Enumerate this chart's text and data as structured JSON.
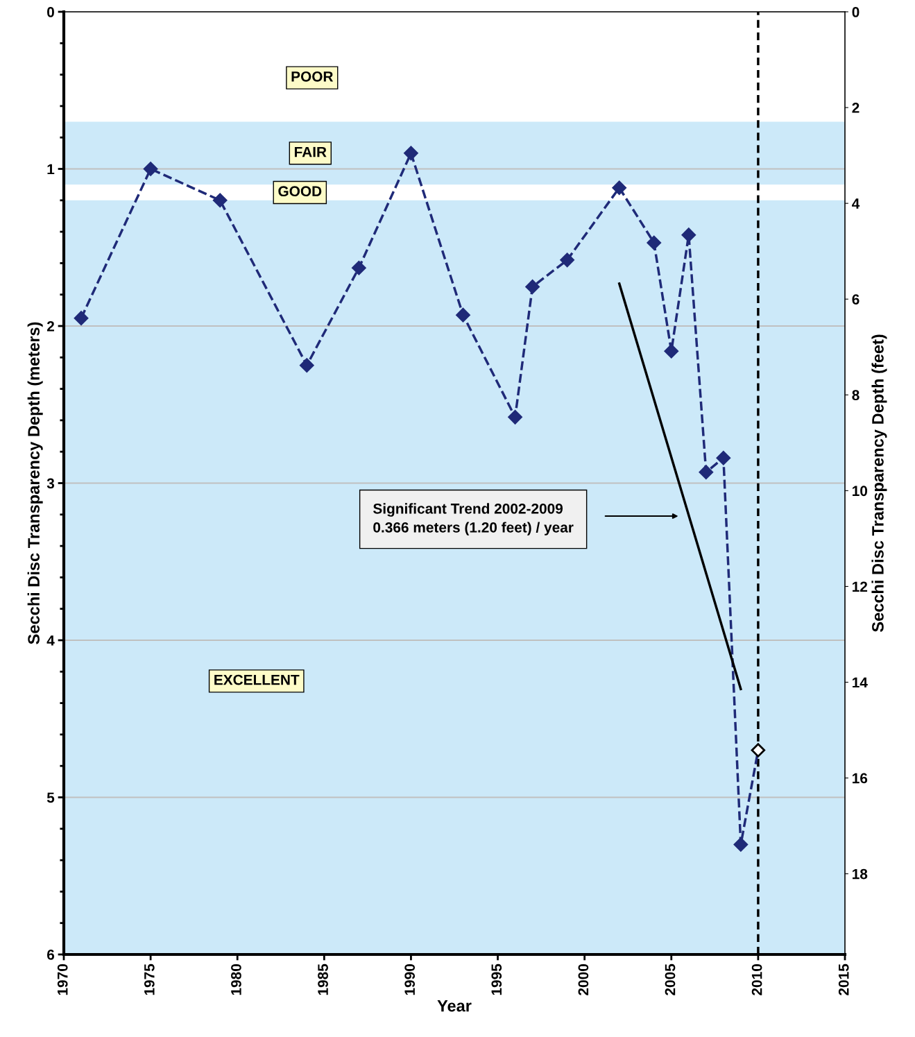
{
  "chart_data": {
    "type": "line",
    "xlabel": "Year",
    "ylabel": "Secchi Disc Transparency Depth (meters)",
    "y2label": "Secchi Disc Transparency Depth (feet)",
    "series": [
      {
        "color": "#1f2a78",
        "line_style": "dashed",
        "marker": "diamond",
        "x": [
          1971,
          1975,
          1979,
          1984,
          1987,
          1990,
          1993,
          1996,
          1997,
          1999,
          2002,
          2004,
          2005,
          2006,
          2007,
          2008,
          2009,
          2010
        ],
        "values": [
          1.95,
          1.0,
          1.2,
          2.25,
          1.63,
          0.9,
          1.93,
          2.58,
          1.75,
          1.58,
          1.12,
          1.47,
          2.16,
          1.42,
          2.93,
          2.84,
          5.3,
          4.7
        ],
        "colors": [
          "#1f2a78",
          "#1f2a78",
          "#1f2a78",
          "#1f2a78",
          "#1f2a78",
          "#1f2a78",
          "#1f2a78",
          "#1f2a78",
          "#1f2a78",
          "#1f2a78",
          "#1f2a78",
          "#1f2a78",
          "#1f2a78",
          "#1f2a78",
          "#1f2a78",
          "#1f2a78",
          "#1f2a78",
          "#ffffff"
        ]
      },
      {
        "color": "#000000",
        "line_style": "solid",
        "marker": "none",
        "x": [
          2002,
          2009
        ],
        "values": [
          1.73,
          4.31
        ]
      }
    ],
    "xlim": [
      1970,
      2015
    ],
    "xticks": [
      1970,
      1975,
      1980,
      1985,
      1990,
      1995,
      2000,
      2005,
      2010,
      2015
    ],
    "ylim": [
      6,
      0
    ],
    "yticks": [
      0,
      1,
      2,
      3,
      4,
      5,
      6
    ],
    "y2lim": [
      19.685,
      0
    ],
    "y2ticks": [
      0,
      2,
      4,
      6,
      8,
      10,
      12,
      14,
      16,
      18
    ],
    "grid": "y",
    "legend": false,
    "bands": [
      {
        "axis": "y",
        "from": 0.7,
        "to": 1.1,
        "label": "FAIR",
        "color": "#cce9f9"
      },
      {
        "axis": "y",
        "from": 1.1,
        "to": 1.2,
        "label": "GOOD",
        "color": "#ffffff"
      },
      {
        "axis": "y",
        "from": 1.2,
        "to": 6,
        "label": "EXCELLENT",
        "color": "#cce9f9"
      }
    ],
    "ref_lines": [
      {
        "axis": "x",
        "value": 2010,
        "color": "#000000",
        "line_style": "dashed"
      }
    ],
    "annotations": [
      "POOR",
      "Significant Trend 2002-2009\n0.366 meters (1.20 feet) / year"
    ]
  }
}
